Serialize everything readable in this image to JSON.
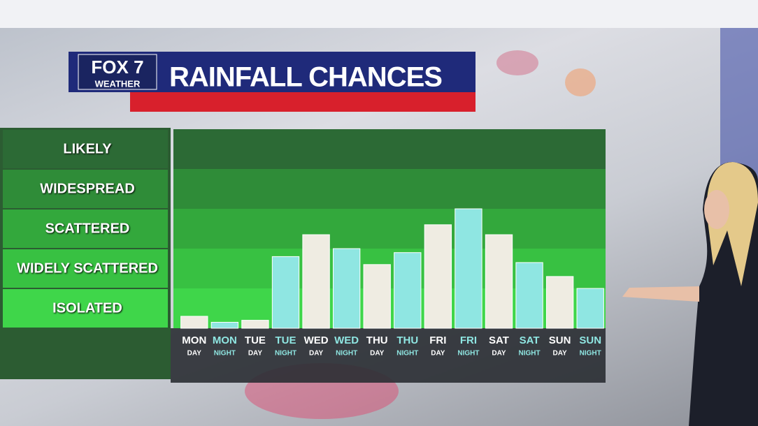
{
  "logo": {
    "brand": "FOX 7",
    "sub": "WEATHER"
  },
  "chart_data": {
    "type": "bar",
    "title": "RAINFALL CHANCES",
    "categories": [
      "MON",
      "MON",
      "TUE",
      "TUE",
      "WED",
      "WED",
      "THU",
      "THU",
      "FRI",
      "FRI",
      "SAT",
      "SAT",
      "SUN",
      "SUN"
    ],
    "category_sublabels": [
      "DAY",
      "NIGHT",
      "DAY",
      "NIGHT",
      "DAY",
      "NIGHT",
      "DAY",
      "NIGHT",
      "DAY",
      "NIGHT",
      "DAY",
      "NIGHT",
      "DAY",
      "NIGHT"
    ],
    "values": [
      0.3,
      0.15,
      0.2,
      1.8,
      2.35,
      2.0,
      1.6,
      1.9,
      2.6,
      3.0,
      2.35,
      1.65,
      1.3,
      1.0
    ],
    "colors": [
      "#efece2",
      "#8fe6e2",
      "#efece2",
      "#8fe6e2",
      "#efece2",
      "#8fe6e2",
      "#efece2",
      "#8fe6e2",
      "#efece2",
      "#8fe6e2",
      "#efece2",
      "#8fe6e2",
      "#efece2",
      "#8fe6e2"
    ],
    "ylim": [
      0,
      5
    ],
    "yticks": [
      {
        "value": 0.5,
        "label": "ISOLATED"
      },
      {
        "value": 1.5,
        "label": "WIDELY SCATTERED"
      },
      {
        "value": 2.5,
        "label": "SCATTERED"
      },
      {
        "value": 3.5,
        "label": "WIDESPREAD"
      },
      {
        "value": 4.5,
        "label": "LIKELY"
      }
    ],
    "band_colors": [
      "#3fd64a",
      "#38c142",
      "#33a83c",
      "#2f8c38",
      "#2c6a35"
    ]
  }
}
